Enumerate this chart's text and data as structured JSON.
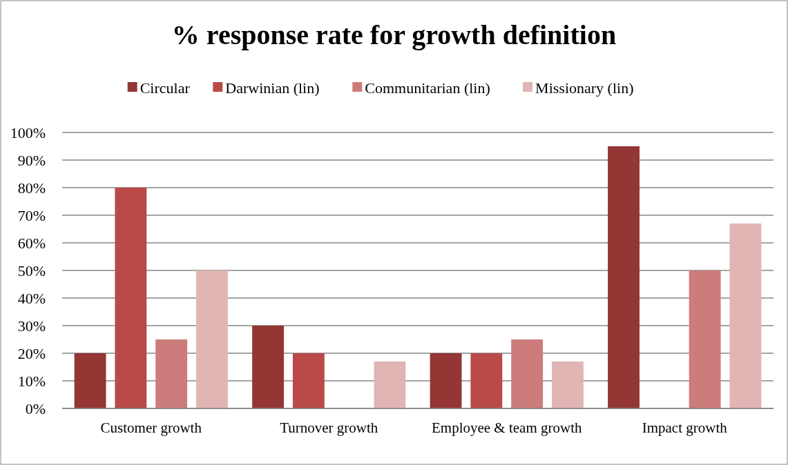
{
  "chart_data": {
    "type": "bar",
    "title": "% response rate for growth definition",
    "categories": [
      "Customer growth",
      "Turnover growth",
      "Employee & team growth",
      "Impact growth"
    ],
    "series": [
      {
        "name": "Circular",
        "color": "#943634",
        "values": [
          20,
          30,
          20,
          95
        ]
      },
      {
        "name": "Darwinian (lin)",
        "color": "#b94a48",
        "values": [
          80,
          20,
          20,
          0
        ]
      },
      {
        "name": "Communitarian (lin)",
        "color": "#cc7c7a",
        "values": [
          25,
          0,
          25,
          50
        ]
      },
      {
        "name": "Missionary (lin)",
        "color": "#e0b5b4",
        "values": [
          50,
          17,
          17,
          67
        ]
      }
    ],
    "ylim": [
      0,
      100
    ],
    "yticks": [
      {
        "value": 0,
        "label": "0%"
      },
      {
        "value": 10,
        "label": "10%"
      },
      {
        "value": 20,
        "label": "20%"
      },
      {
        "value": 30,
        "label": "30%"
      },
      {
        "value": 40,
        "label": "40%"
      },
      {
        "value": 50,
        "label": "50%"
      },
      {
        "value": 60,
        "label": "60%"
      },
      {
        "value": 70,
        "label": "70%"
      },
      {
        "value": 80,
        "label": "80%"
      },
      {
        "value": 90,
        "label": "90%"
      },
      {
        "value": 100,
        "label": "100%"
      }
    ],
    "grid": "y",
    "legend": "top"
  }
}
